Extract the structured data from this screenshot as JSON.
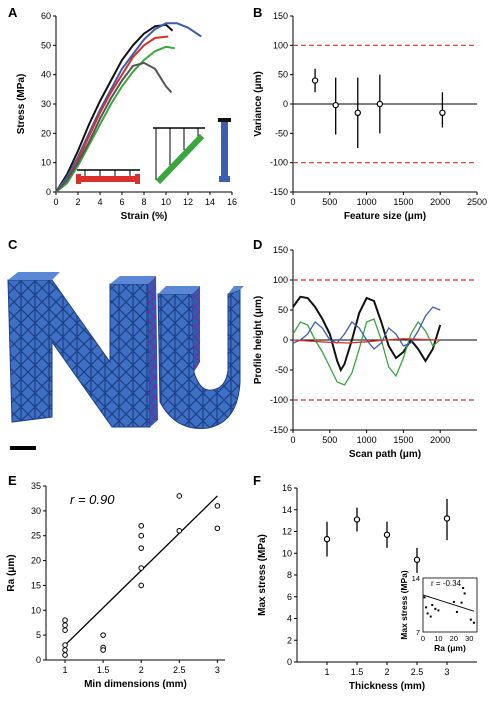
{
  "chart_data": [
    {
      "panel": "A",
      "type": "line",
      "ylabel": "Stress (MPa)",
      "xlabel": "Strain (%)",
      "xlim": [
        0,
        16
      ],
      "ylim": [
        0,
        60
      ],
      "xticks": [
        0,
        2,
        4,
        6,
        8,
        10,
        12,
        14,
        16
      ],
      "yticks": [
        0,
        10,
        20,
        30,
        40,
        50,
        60
      ],
      "colors": {
        "black": "#111111",
        "blue": "#3a5fae",
        "red": "#d9302c",
        "green": "#3aa63e",
        "gray": "#555555"
      },
      "series": [
        {
          "color": "#111111",
          "x": [
            0,
            1,
            2,
            3,
            4,
            5,
            6,
            7,
            8,
            9,
            10,
            10.6
          ],
          "y": [
            0,
            6,
            14,
            23,
            31,
            38,
            45,
            50,
            54,
            56.5,
            57,
            55
          ]
        },
        {
          "color": "#3a5fae",
          "x": [
            0,
            1,
            2,
            3,
            4,
            5,
            6,
            7,
            8,
            9,
            10,
            11,
            12,
            13.2
          ],
          "y": [
            0,
            5,
            12,
            20,
            28,
            35,
            42,
            47,
            52,
            55.5,
            57.5,
            57.5,
            56,
            53
          ]
        },
        {
          "color": "#d9302c",
          "x": [
            0,
            1,
            2,
            3,
            4,
            5,
            6,
            7,
            8,
            9,
            10.2
          ],
          "y": [
            0,
            4,
            11,
            19,
            27,
            34,
            40,
            46,
            50,
            52.5,
            53
          ]
        },
        {
          "color": "#3aa63e",
          "x": [
            0,
            1,
            2,
            3,
            4,
            5,
            6,
            7,
            8,
            9,
            10,
            10.8
          ],
          "y": [
            0,
            3,
            9,
            16,
            23,
            30,
            36,
            41,
            45,
            48,
            49.5,
            49
          ]
        },
        {
          "color": "#555555",
          "x": [
            0,
            1,
            2,
            3,
            4,
            5,
            6,
            7,
            8,
            9,
            10,
            10.5
          ],
          "y": [
            0,
            4,
            10,
            17,
            25,
            32,
            38,
            43,
            44,
            42,
            36,
            34
          ]
        }
      ]
    },
    {
      "panel": "B",
      "type": "scatter",
      "ylabel": "Variance (μm)",
      "xlabel": "Feature size (μm)",
      "xlim": [
        0,
        2500
      ],
      "ylim": [
        -150,
        150
      ],
      "xticks": [
        0,
        500,
        1000,
        1500,
        2000,
        2500
      ],
      "yticks": [
        -150,
        -100,
        -50,
        0,
        50,
        100,
        150
      ],
      "reference_lines": [
        100,
        -100
      ],
      "points": [
        {
          "x": 300,
          "y": 40,
          "ylo": 20,
          "yhi": 60
        },
        {
          "x": 580,
          "y": -2,
          "ylo": -52,
          "yhi": 45
        },
        {
          "x": 880,
          "y": -15,
          "ylo": -75,
          "yhi": 45
        },
        {
          "x": 1180,
          "y": 0,
          "ylo": -50,
          "yhi": 50
        },
        {
          "x": 2030,
          "y": -15,
          "ylo": -40,
          "yhi": 20
        }
      ]
    },
    {
      "panel": "D",
      "type": "line",
      "ylabel": "Profile height (μm)",
      "xlabel": "Scan path (μm)",
      "xlim": [
        0,
        2500
      ],
      "ylim": [
        -150,
        150
      ],
      "xticks": [
        0,
        500,
        1000,
        1500,
        2000
      ],
      "yticks": [
        -150,
        -100,
        -50,
        0,
        50,
        100,
        150
      ],
      "reference_lines": [
        100,
        -100
      ],
      "series": [
        {
          "color": "#111111",
          "x": [
            0,
            100,
            200,
            300,
            400,
            500,
            600,
            650,
            700,
            800,
            900,
            1000,
            1100,
            1200,
            1300,
            1400,
            1500,
            1600,
            1700,
            1800,
            1900,
            2000
          ],
          "y": [
            55,
            72,
            70,
            55,
            35,
            10,
            -35,
            -50,
            -40,
            0,
            45,
            70,
            65,
            30,
            -10,
            -30,
            -20,
            0,
            -15,
            -35,
            -15,
            25
          ]
        },
        {
          "color": "#3aa63e",
          "x": [
            0,
            100,
            200,
            300,
            400,
            500,
            600,
            700,
            800,
            900,
            1000,
            1100,
            1200,
            1300,
            1400,
            1500,
            1600,
            1700,
            1800,
            1900,
            2000
          ],
          "y": [
            10,
            30,
            25,
            0,
            -20,
            -45,
            -70,
            -75,
            -55,
            -15,
            30,
            35,
            0,
            -45,
            -60,
            -30,
            10,
            30,
            15,
            -10,
            0
          ]
        },
        {
          "color": "#3a5fae",
          "x": [
            0,
            100,
            200,
            300,
            400,
            500,
            600,
            700,
            800,
            900,
            1000,
            1100,
            1200,
            1300,
            1400,
            1500,
            1600,
            1700,
            1800,
            1900,
            2000
          ],
          "y": [
            -5,
            0,
            10,
            30,
            20,
            0,
            -5,
            10,
            30,
            20,
            0,
            -15,
            -5,
            20,
            10,
            -10,
            -5,
            15,
            40,
            55,
            50
          ]
        },
        {
          "color": "#d9302c",
          "x": [
            0,
            250,
            500,
            750,
            1000,
            1250,
            1500,
            1750,
            2000
          ],
          "y": [
            0,
            -2,
            -4,
            -5,
            -3,
            0,
            2,
            1,
            0
          ]
        }
      ]
    },
    {
      "panel": "E",
      "type": "scatter",
      "ylabel": "Ra (μm)",
      "xlabel": "Min dimensions (mm)",
      "annotation": "r = 0.90",
      "xlim": [
        0.75,
        3.1
      ],
      "ylim": [
        0,
        35
      ],
      "xticks": [
        1.0,
        1.5,
        2.0,
        2.5,
        3.0
      ],
      "yticks": [
        0,
        5,
        10,
        15,
        20,
        25,
        30,
        35
      ],
      "fit": {
        "x": [
          1.0,
          3.0
        ],
        "y": [
          3,
          33
        ]
      },
      "points": [
        {
          "x": 1.0,
          "y": 8
        },
        {
          "x": 1.0,
          "y": 7
        },
        {
          "x": 1.0,
          "y": 6
        },
        {
          "x": 1.0,
          "y": 3
        },
        {
          "x": 1.0,
          "y": 2
        },
        {
          "x": 1.0,
          "y": 1
        },
        {
          "x": 1.5,
          "y": 5
        },
        {
          "x": 1.5,
          "y": 2.5
        },
        {
          "x": 1.5,
          "y": 2
        },
        {
          "x": 2.0,
          "y": 27
        },
        {
          "x": 2.0,
          "y": 25
        },
        {
          "x": 2.0,
          "y": 22.5
        },
        {
          "x": 2.0,
          "y": 18.5
        },
        {
          "x": 2.0,
          "y": 15
        },
        {
          "x": 2.5,
          "y": 33
        },
        {
          "x": 2.5,
          "y": 26
        },
        {
          "x": 3.0,
          "y": 31
        },
        {
          "x": 3.0,
          "y": 26.5
        }
      ]
    },
    {
      "panel": "F",
      "type": "scatter",
      "ylabel": "Max stress (MPa)",
      "xlabel": "Thickness (mm)",
      "xlim": [
        0.5,
        3.5
      ],
      "ylim": [
        0,
        16
      ],
      "xticks": [
        1.0,
        1.5,
        2.0,
        2.5,
        3.0
      ],
      "yticks": [
        0,
        2,
        4,
        6,
        8,
        10,
        12,
        14,
        16
      ],
      "points": [
        {
          "x": 1.0,
          "y": 11.3,
          "ylo": 9.7,
          "yhi": 12.9
        },
        {
          "x": 1.5,
          "y": 13.1,
          "ylo": 12.0,
          "yhi": 14.2
        },
        {
          "x": 2.0,
          "y": 11.7,
          "ylo": 10.5,
          "yhi": 12.9
        },
        {
          "x": 2.5,
          "y": 9.4,
          "ylo": 8.2,
          "yhi": 10.5
        },
        {
          "x": 3.0,
          "y": 13.2,
          "ylo": 11.2,
          "yhi": 15.0
        }
      ],
      "inset": {
        "ylabel": "Max stress (MPa)",
        "xlabel": "Ra (μm)",
        "annotation": "r = -0.34",
        "xlim": [
          0,
          35
        ],
        "ylim": [
          7,
          14
        ],
        "xticks": [
          0,
          10,
          20,
          30
        ],
        "yticks": [
          7,
          14
        ],
        "fit": {
          "x": [
            0,
            33
          ],
          "y": [
            11.8,
            9.7
          ]
        },
        "points": [
          {
            "x": 1,
            "y": 11.5
          },
          {
            "x": 2,
            "y": 10.2
          },
          {
            "x": 3,
            "y": 9.4
          },
          {
            "x": 5,
            "y": 9.0
          },
          {
            "x": 6,
            "y": 10.5
          },
          {
            "x": 8,
            "y": 10.0
          },
          {
            "x": 10,
            "y": 9.8
          },
          {
            "x": 20,
            "y": 10.9
          },
          {
            "x": 22,
            "y": 9.6
          },
          {
            "x": 25,
            "y": 10.8
          },
          {
            "x": 26,
            "y": 12.7
          },
          {
            "x": 27,
            "y": 12.0
          },
          {
            "x": 31,
            "y": 8.6
          },
          {
            "x": 33,
            "y": 8.2
          }
        ]
      }
    }
  ],
  "panels": {
    "A": {
      "letter": "A"
    },
    "B": {
      "letter": "B"
    },
    "C": {
      "letter": "C"
    },
    "D": {
      "letter": "D"
    },
    "E": {
      "letter": "E"
    },
    "F": {
      "letter": "F"
    }
  }
}
